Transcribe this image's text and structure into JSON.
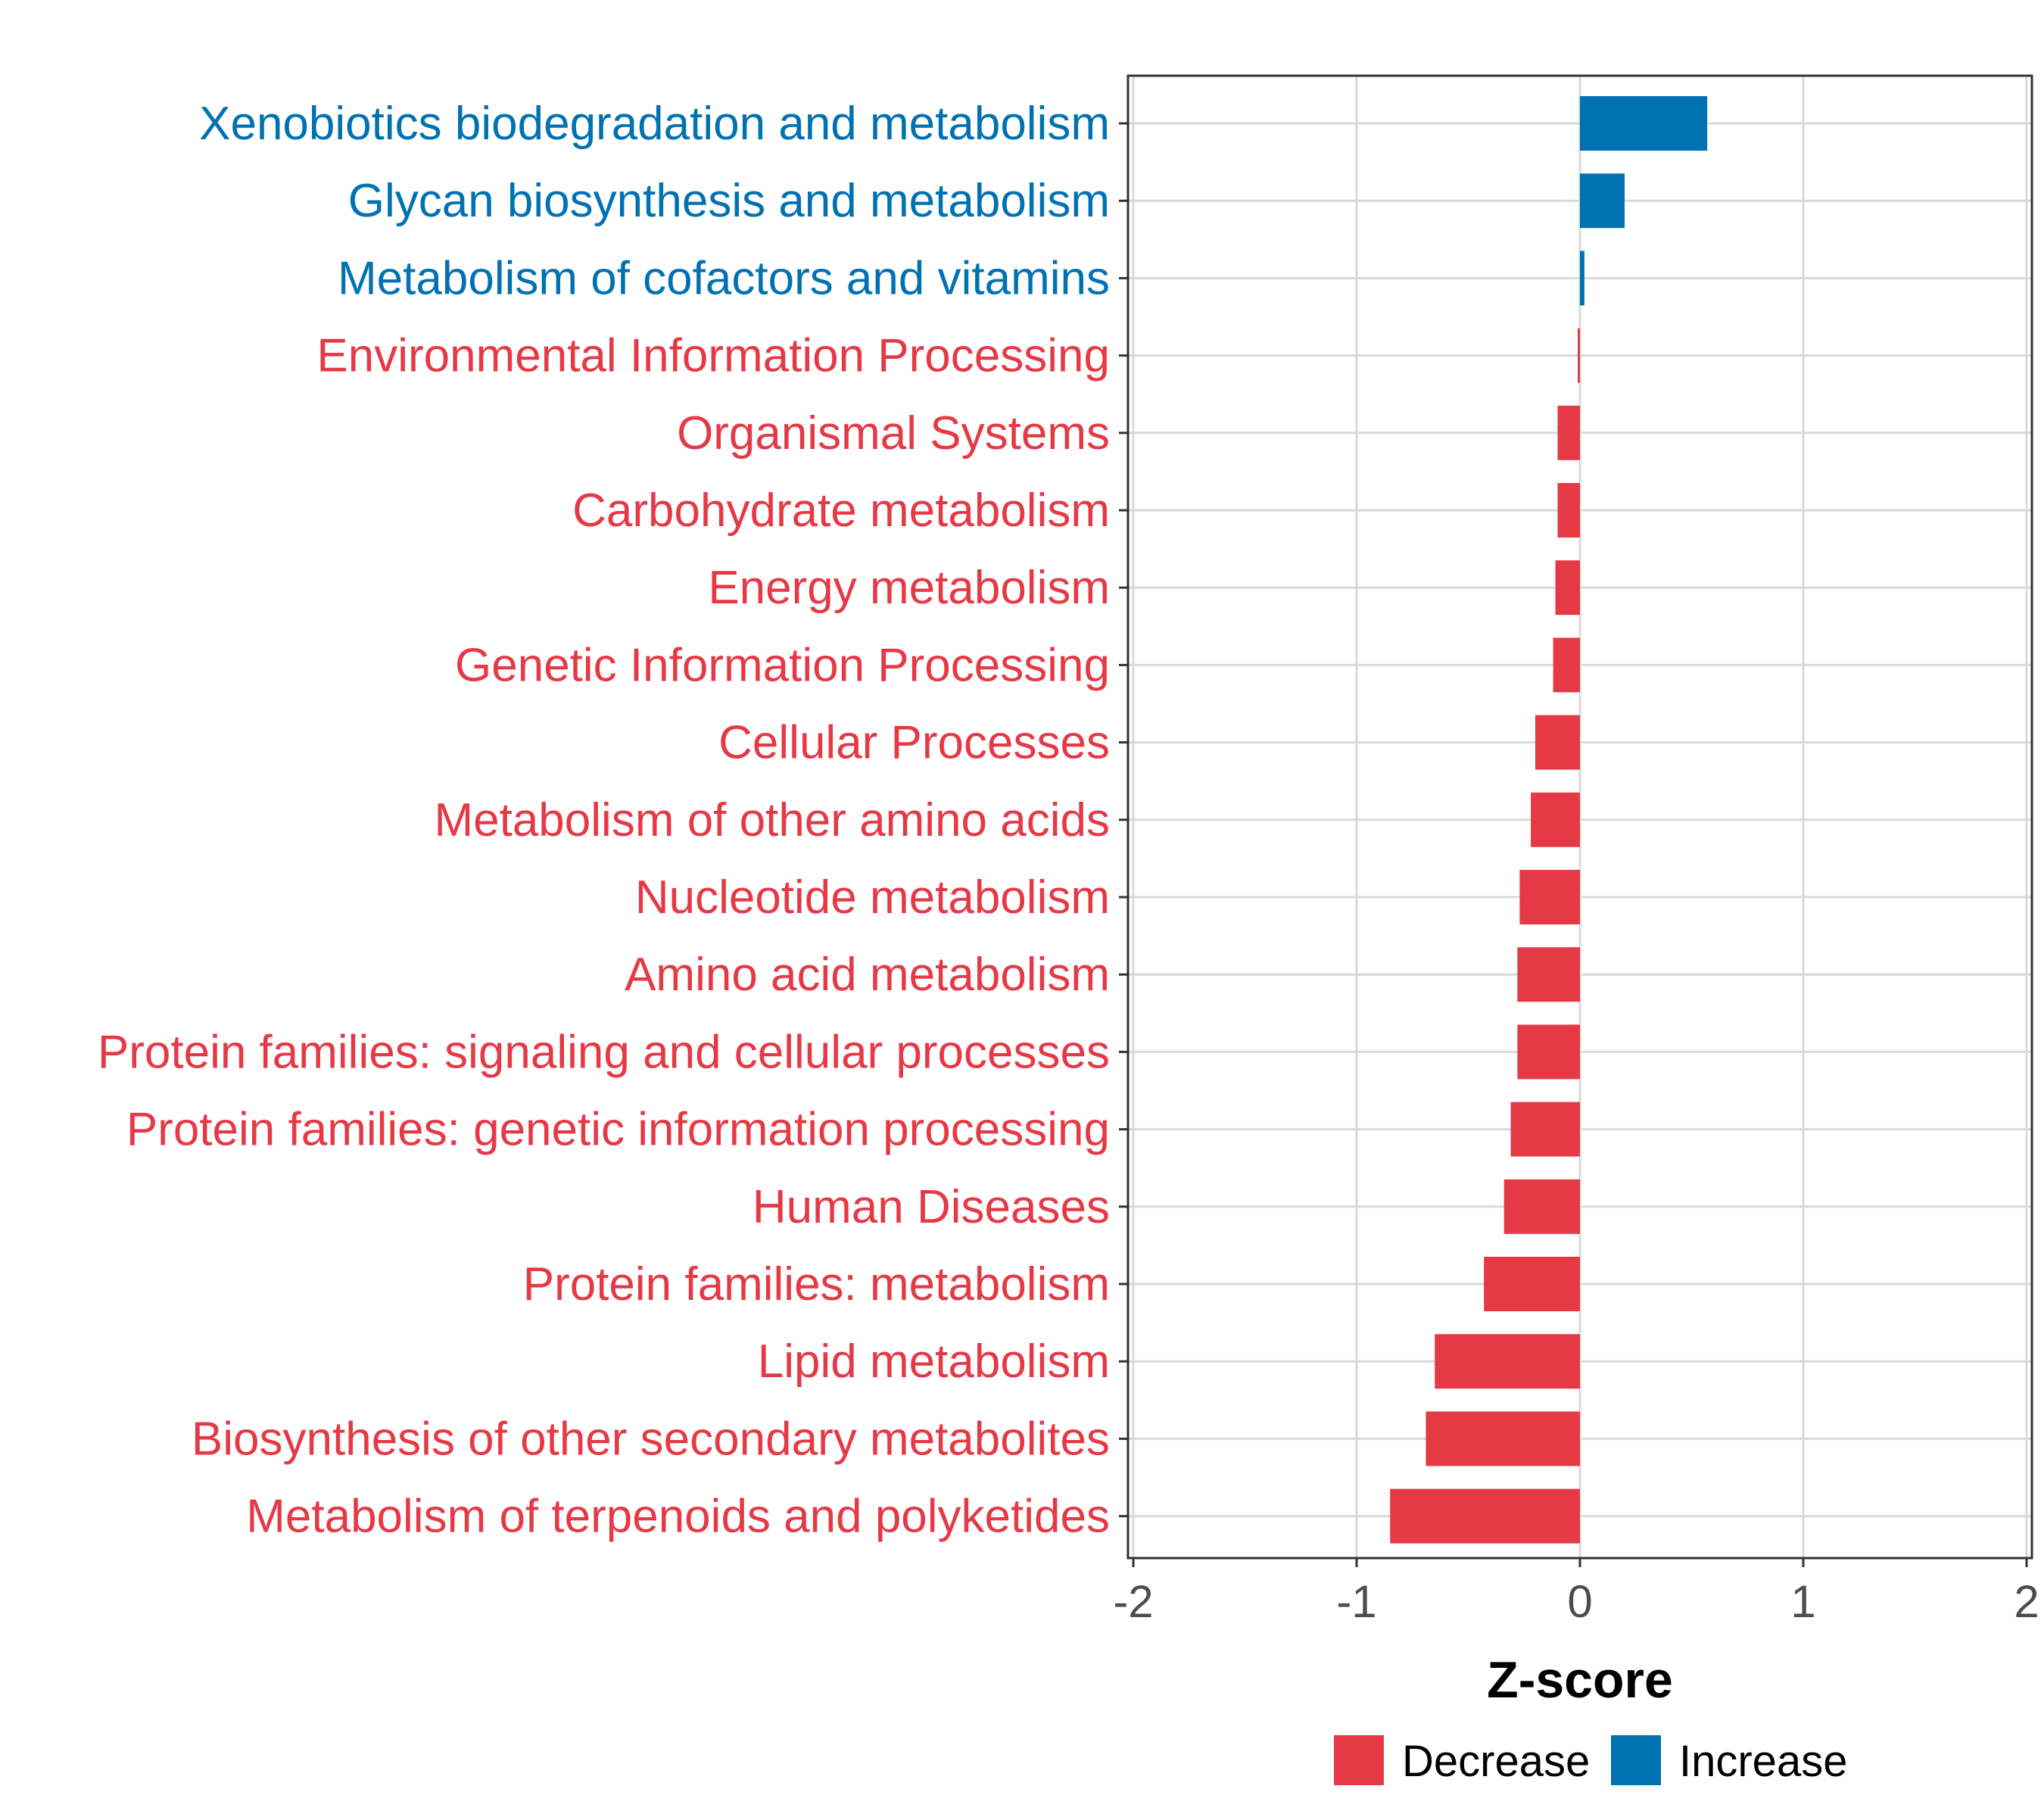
{
  "chart_data": {
    "type": "bar",
    "orientation": "horizontal",
    "xlabel": "Z-score",
    "xlim": [
      -2,
      2
    ],
    "xticks": [
      -2,
      -1,
      0,
      1,
      2
    ],
    "xtick_labels": [
      "-2",
      "-1",
      "0",
      "1",
      "2"
    ],
    "grid": true,
    "legend_position": "bottom",
    "colors": {
      "Decrease": "#E63946",
      "Increase": "#0072B2"
    },
    "legend": [
      {
        "label": "Decrease",
        "color": "#E63946"
      },
      {
        "label": "Increase",
        "color": "#0072B2"
      }
    ],
    "categories": [
      "Xenobiotics biodegradation and metabolism",
      "Glycan biosynthesis and metabolism",
      "Metabolism of cofactors and vitamins",
      "Environmental Information Processing",
      "Organismal Systems",
      "Carbohydrate metabolism",
      "Energy metabolism",
      "Genetic Information Processing",
      "Cellular Processes",
      "Metabolism of other amino acids",
      "Nucleotide metabolism",
      "Amino acid metabolism",
      "Protein families: signaling and cellular processes",
      "Protein families: genetic information processing",
      "Human Diseases",
      "Protein families: metabolism",
      "Lipid metabolism",
      "Biosynthesis of other secondary metabolites",
      "Metabolism of terpenoids and polyketides"
    ],
    "values": [
      0.57,
      0.2,
      0.02,
      -0.01,
      -0.1,
      -0.1,
      -0.11,
      -0.12,
      -0.2,
      -0.22,
      -0.27,
      -0.28,
      -0.28,
      -0.31,
      -0.34,
      -0.43,
      -0.65,
      -0.69,
      -0.85
    ],
    "groups": [
      "Increase",
      "Increase",
      "Increase",
      "Decrease",
      "Decrease",
      "Decrease",
      "Decrease",
      "Decrease",
      "Decrease",
      "Decrease",
      "Decrease",
      "Decrease",
      "Decrease",
      "Decrease",
      "Decrease",
      "Decrease",
      "Decrease",
      "Decrease",
      "Decrease"
    ]
  }
}
